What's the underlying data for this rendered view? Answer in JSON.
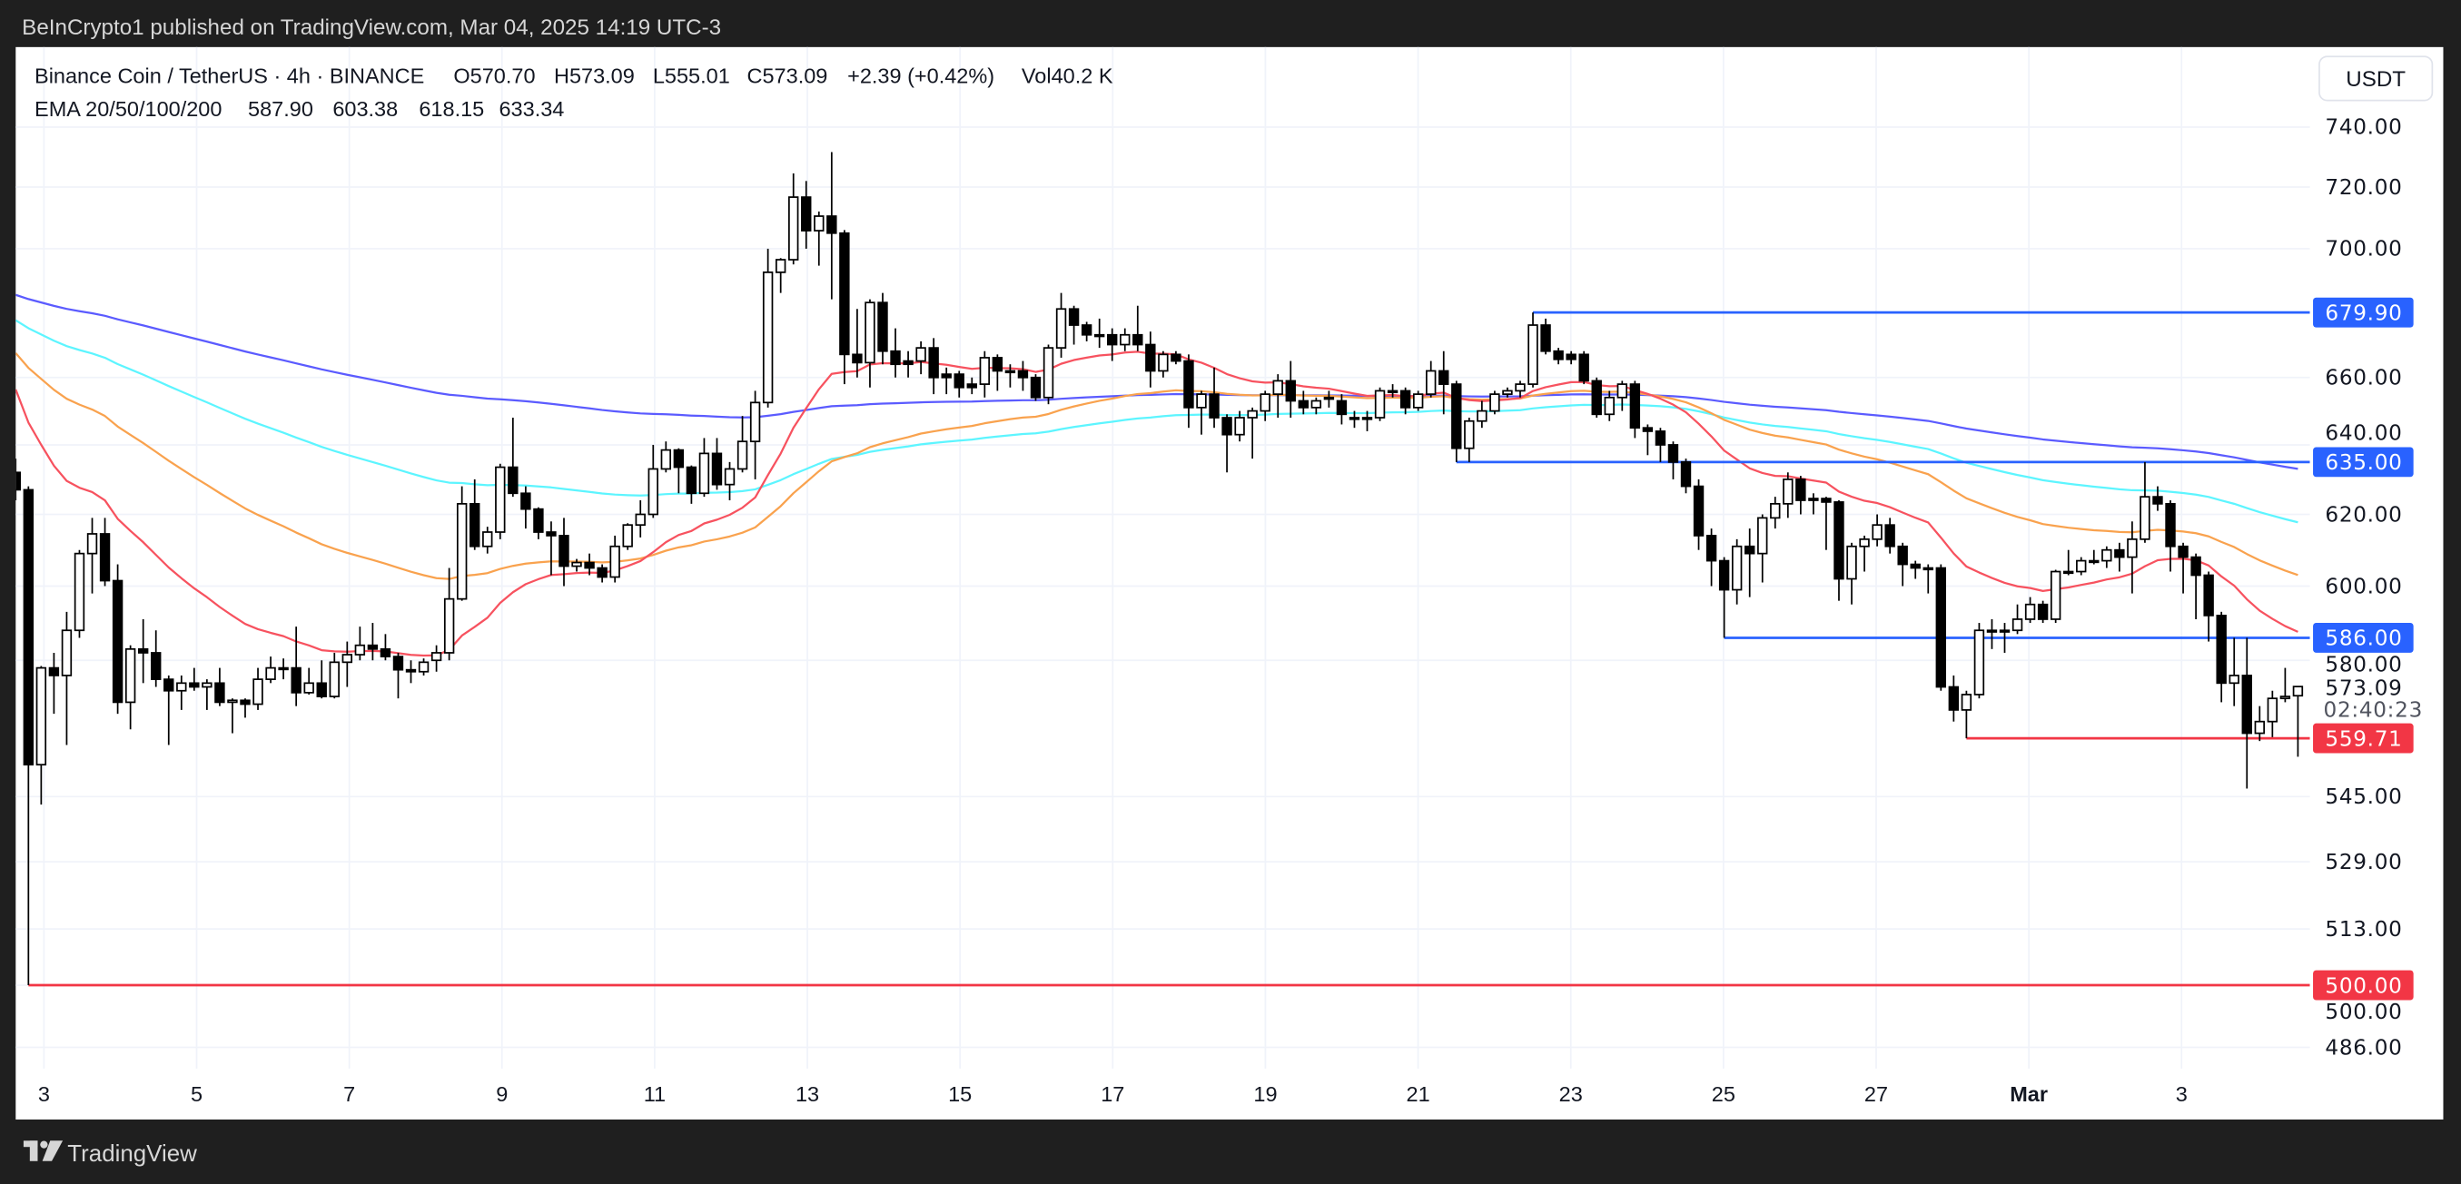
{
  "header": {
    "published": "BeInCrypto1 published on TradingView.com, Mar 04, 2025 14:19 UTC-3"
  },
  "legend": {
    "symbol": "Binance Coin / TetherUS · 4h · BINANCE",
    "open": "O570.70",
    "high": "H573.09",
    "low": "L555.01",
    "close": "C573.09",
    "change": "+2.39 (+0.42%)",
    "volume": "Vol40.2 K",
    "ema_label": "EMA 20/50/100/200",
    "ema_values": [
      "587.90",
      "603.38",
      "618.15",
      "633.34"
    ]
  },
  "currency_button": "USDT",
  "countdown": "02:40:23",
  "last_price": "573.09",
  "footer": {
    "logo_text": "TradingView"
  },
  "colors": {
    "ema20": "#f7525f",
    "ema50": "#f9a24e",
    "ema100": "#5df5ff",
    "ema200": "#5b5bff",
    "ema20_text": "#ff0000",
    "ema50_text": "#ff8c00",
    "ema100_text": "#00e5ff",
    "ema200_text": "#0000ff",
    "level_blue": "#2962ff",
    "level_red": "#f23645",
    "candle": "#000000"
  },
  "chart_data": {
    "type": "candlestick",
    "title": "Binance Coin / TetherUS · 4h · BINANCE",
    "interval": "4h",
    "y_scale": "log",
    "ylim": [
      480,
      745
    ],
    "y_ticks": [
      "740.00",
      "720.00",
      "700.00",
      "660.00",
      "640.00",
      "620.00",
      "600.00",
      "580.00",
      "545.00",
      "529.00",
      "513.00",
      "500.00",
      "486.00"
    ],
    "x_tick_labels": [
      "3",
      "5",
      "7",
      "9",
      "11",
      "13",
      "15",
      "17",
      "19",
      "21",
      "23",
      "25",
      "27",
      "Mar",
      "3"
    ],
    "ema_periods": [
      20,
      50,
      100,
      200
    ],
    "ema_seed": [
      656.4,
      667.4,
      677.5,
      685.4
    ],
    "levels": [
      {
        "price": 679.9,
        "label": "679.90",
        "color": "blue",
        "from_candle": 119
      },
      {
        "price": 635.0,
        "label": "635.00",
        "color": "blue",
        "from_candle": 113
      },
      {
        "price": 586.0,
        "label": "586.00",
        "color": "blue",
        "from_candle": 134
      },
      {
        "price": 559.71,
        "label": "559.71",
        "color": "red",
        "from_candle": 153
      },
      {
        "price": 500.0,
        "label": "500.00",
        "color": "red",
        "from_candle": 1
      }
    ],
    "ohlc": [
      [
        632,
        636,
        624,
        627
      ],
      [
        627,
        628,
        500,
        553
      ],
      [
        553,
        578.5,
        543,
        578
      ],
      [
        578,
        582,
        566,
        576
      ],
      [
        576,
        593,
        558,
        588
      ],
      [
        588,
        610,
        586,
        609
      ],
      [
        609,
        619,
        598,
        614.5
      ],
      [
        614.5,
        619,
        600,
        601.5
      ],
      [
        601.5,
        606,
        566,
        569
      ],
      [
        569,
        584,
        562,
        583
      ],
      [
        583,
        591,
        574,
        582
      ],
      [
        582,
        588,
        573,
        575
      ],
      [
        575,
        576,
        558,
        572
      ],
      [
        572,
        576,
        567,
        574
      ],
      [
        574,
        578,
        572,
        573
      ],
      [
        573,
        575,
        567,
        574
      ],
      [
        574,
        578,
        568,
        569
      ],
      [
        569,
        570,
        561,
        569.5
      ],
      [
        569.5,
        570,
        565,
        568.5
      ],
      [
        568.5,
        578,
        567,
        575
      ],
      [
        575,
        581,
        574,
        578
      ],
      [
        578,
        580.5,
        575,
        578
      ],
      [
        578,
        589,
        568,
        571.5
      ],
      [
        571.5,
        578,
        571,
        574
      ],
      [
        574,
        580,
        570,
        570.5
      ],
      [
        570.5,
        582,
        570,
        579.5
      ],
      [
        579.5,
        585,
        573,
        581.5
      ],
      [
        581.5,
        589,
        580,
        584
      ],
      [
        584,
        590,
        580,
        583
      ],
      [
        583,
        587,
        580,
        581
      ],
      [
        581,
        582,
        570,
        577.5
      ],
      [
        577.5,
        580,
        574,
        577
      ],
      [
        577,
        580.5,
        576,
        579.5
      ],
      [
        580,
        584,
        577,
        582
      ],
      [
        582,
        605,
        580,
        596.5
      ],
      [
        596.5,
        628,
        596,
        623
      ],
      [
        623,
        630,
        610,
        611
      ],
      [
        611,
        616.5,
        609,
        615
      ],
      [
        615,
        634.5,
        613,
        633.5
      ],
      [
        633.5,
        648,
        625,
        626
      ],
      [
        626,
        628,
        616,
        621.5
      ],
      [
        621.5,
        622,
        613,
        615
      ],
      [
        615,
        618,
        603,
        614
      ],
      [
        614,
        619,
        600,
        605.5
      ],
      [
        605.5,
        607.5,
        604,
        606.5
      ],
      [
        606.5,
        609,
        603,
        605
      ],
      [
        605,
        606,
        601,
        602.5
      ],
      [
        602.5,
        614,
        601,
        611
      ],
      [
        611,
        617.5,
        610,
        617
      ],
      [
        617,
        624,
        613.5,
        620
      ],
      [
        620,
        640,
        619,
        633
      ],
      [
        633,
        641,
        632,
        638.5
      ],
      [
        638.5,
        639,
        626,
        633.5
      ],
      [
        633.5,
        634,
        623,
        626
      ],
      [
        626,
        642,
        625,
        637.5
      ],
      [
        637.5,
        642,
        627,
        628.5
      ],
      [
        628.5,
        635,
        624,
        633
      ],
      [
        633,
        648.5,
        632,
        641
      ],
      [
        641,
        656,
        630,
        652.5
      ],
      [
        652.5,
        700,
        651,
        692.5
      ],
      [
        692.5,
        697,
        686,
        696.5
      ],
      [
        696.5,
        724.5,
        695,
        716.7
      ],
      [
        716.7,
        722,
        700,
        705.8
      ],
      [
        705.8,
        712,
        694.6,
        710.5
      ],
      [
        710.5,
        731.6,
        684,
        705
      ],
      [
        705,
        706,
        658,
        667
      ],
      [
        667,
        681,
        660,
        664.5
      ],
      [
        664.5,
        684,
        657,
        683
      ],
      [
        683,
        686,
        664,
        668
      ],
      [
        668,
        675,
        660,
        664
      ],
      [
        665,
        668,
        660,
        664
      ],
      [
        665,
        671,
        661,
        669
      ],
      [
        669,
        672,
        655,
        660
      ],
      [
        661,
        663,
        655,
        660
      ],
      [
        661,
        662,
        654,
        657
      ],
      [
        658,
        660,
        655,
        657
      ],
      [
        658,
        668,
        654,
        666
      ],
      [
        666,
        667,
        656,
        662
      ],
      [
        662,
        664,
        657,
        662
      ],
      [
        662,
        665,
        656,
        660
      ],
      [
        660,
        661,
        653,
        654
      ],
      [
        654,
        670,
        652,
        669
      ],
      [
        669,
        686,
        666,
        681
      ],
      [
        681,
        682,
        670,
        676
      ],
      [
        676,
        677,
        671,
        673
      ],
      [
        673,
        678,
        669,
        673
      ],
      [
        673,
        675,
        665,
        670
      ],
      [
        670,
        675,
        668,
        673
      ],
      [
        673,
        682,
        668,
        670
      ],
      [
        670,
        674,
        657,
        662
      ],
      [
        662,
        668,
        660,
        667
      ],
      [
        667,
        668,
        664,
        665
      ],
      [
        665,
        667,
        645,
        651
      ],
      [
        651,
        656,
        643,
        655
      ],
      [
        655,
        663,
        645,
        648
      ],
      [
        648,
        649,
        632,
        643
      ],
      [
        643,
        650,
        641,
        648
      ],
      [
        648,
        651,
        636,
        650
      ],
      [
        650,
        656,
        647,
        655
      ],
      [
        655,
        661,
        648,
        659
      ],
      [
        659,
        665,
        648,
        653
      ],
      [
        653,
        656,
        649,
        651
      ],
      [
        651,
        654,
        649,
        653
      ],
      [
        654,
        656,
        651,
        654
      ],
      [
        653,
        655,
        646,
        649
      ],
      [
        648,
        650,
        645,
        648
      ],
      [
        648,
        650,
        644,
        648
      ],
      [
        648,
        657,
        647,
        656
      ],
      [
        656,
        658,
        654,
        656
      ],
      [
        656,
        657,
        649,
        651
      ],
      [
        651,
        656,
        650,
        655
      ],
      [
        655,
        665,
        654,
        662
      ],
      [
        662,
        668,
        649,
        658
      ],
      [
        658,
        659,
        635,
        639
      ],
      [
        639,
        648,
        635,
        647
      ],
      [
        647,
        653,
        645,
        650
      ],
      [
        650,
        656,
        649,
        655
      ],
      [
        655,
        657,
        654,
        656
      ],
      [
        656,
        659,
        654,
        658
      ],
      [
        658,
        679.9,
        657,
        676
      ],
      [
        676,
        678,
        667,
        668
      ],
      [
        668,
        669,
        664,
        665.5
      ],
      [
        667,
        668,
        664,
        665.5
      ],
      [
        667,
        668,
        658,
        659
      ],
      [
        659,
        660,
        648,
        649
      ],
      [
        649,
        656,
        647,
        654
      ],
      [
        654,
        659,
        650,
        658
      ],
      [
        658,
        659,
        642,
        645
      ],
      [
        645,
        646,
        637,
        644
      ],
      [
        644,
        645,
        635,
        640
      ],
      [
        640,
        641,
        630,
        635
      ],
      [
        635,
        636,
        626,
        628
      ],
      [
        628,
        630,
        610,
        614
      ],
      [
        614,
        616,
        600,
        607
      ],
      [
        607,
        608,
        586,
        599
      ],
      [
        599,
        613,
        595,
        611
      ],
      [
        611,
        616,
        597,
        609
      ],
      [
        609,
        620,
        601,
        619
      ],
      [
        619,
        625,
        616,
        623
      ],
      [
        623,
        632,
        619,
        630
      ],
      [
        630,
        631,
        620,
        624
      ],
      [
        624.5,
        626,
        620,
        624
      ],
      [
        624.5,
        625,
        610,
        623.5
      ],
      [
        623.5,
        624,
        596,
        602
      ],
      [
        602,
        612,
        595,
        611
      ],
      [
        611,
        614,
        604,
        613
      ],
      [
        613,
        620,
        611,
        617
      ],
      [
        617,
        619,
        609,
        611
      ],
      [
        611,
        612,
        600,
        606
      ],
      [
        606,
        607,
        602,
        605
      ],
      [
        605,
        606,
        598,
        605
      ],
      [
        605,
        606,
        572,
        573
      ],
      [
        573,
        576,
        564,
        567
      ],
      [
        567,
        572,
        559.71,
        571
      ],
      [
        571,
        590,
        570,
        588
      ],
      [
        588,
        591,
        583,
        588
      ],
      [
        588,
        590,
        582,
        588
      ],
      [
        588,
        595,
        587,
        591
      ],
      [
        591,
        597,
        590,
        595
      ],
      [
        595,
        596,
        590,
        591
      ],
      [
        591,
        604.5,
        590,
        604
      ],
      [
        604,
        610,
        603,
        604
      ],
      [
        604,
        608,
        603,
        607
      ],
      [
        607,
        610,
        606,
        607
      ],
      [
        607,
        611,
        605,
        610
      ],
      [
        610,
        612,
        604,
        608
      ],
      [
        608,
        618,
        598,
        613
      ],
      [
        613,
        635,
        612,
        625
      ],
      [
        625,
        628,
        621,
        623
      ],
      [
        623,
        624,
        604,
        611
      ],
      [
        611,
        612,
        598,
        608
      ],
      [
        608,
        609,
        591,
        603
      ],
      [
        603,
        604,
        585,
        592
      ],
      [
        592,
        593,
        569,
        574
      ],
      [
        574,
        586,
        568,
        576
      ],
      [
        576,
        586,
        547,
        561
      ],
      [
        561,
        568,
        559,
        564
      ],
      [
        564,
        572,
        560,
        570
      ],
      [
        570,
        578,
        569,
        570.5
      ],
      [
        570.7,
        573.09,
        555.01,
        573.09
      ]
    ]
  }
}
